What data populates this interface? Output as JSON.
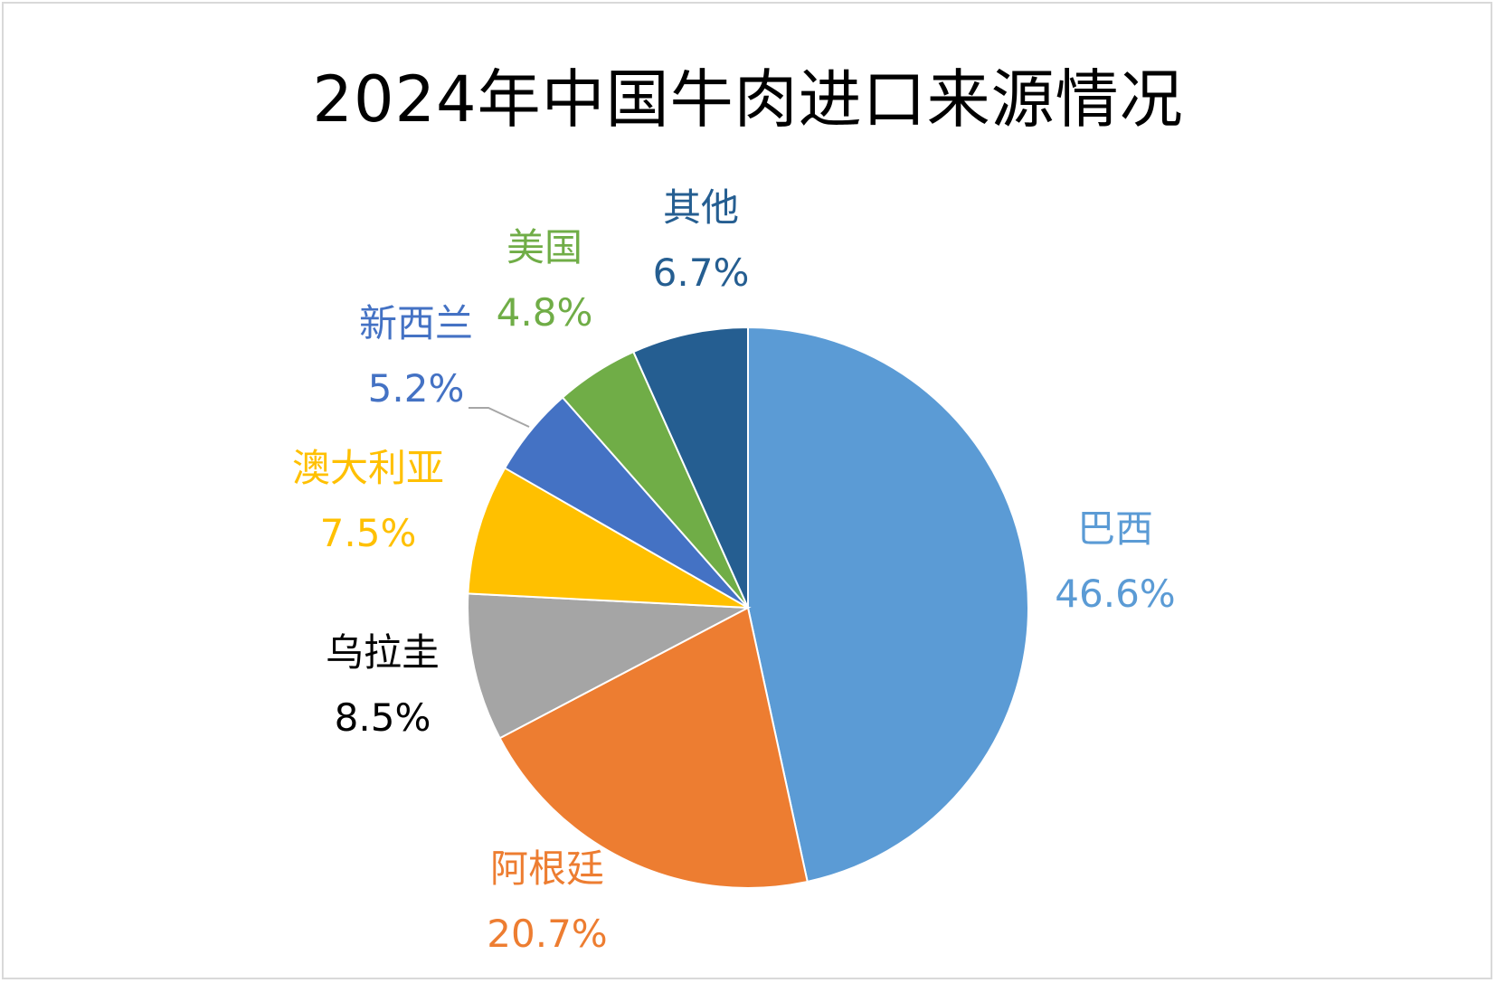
{
  "chart_data": {
    "type": "pie",
    "title": "2024年中国牛肉进口来源情况",
    "slices": [
      {
        "name": "巴西",
        "value": 46.6,
        "label": "46.6%",
        "color": "#5B9BD5"
      },
      {
        "name": "阿根廷",
        "value": 20.7,
        "label": "20.7%",
        "color": "#ED7D31"
      },
      {
        "name": "乌拉圭",
        "value": 8.5,
        "label": "8.5%",
        "color": "#A5A5A5"
      },
      {
        "name": "澳大利亚",
        "value": 7.5,
        "label": "7.5%",
        "color": "#FFC000"
      },
      {
        "name": "新西兰",
        "value": 5.2,
        "label": "5.2%",
        "color": "#4472C4"
      },
      {
        "name": "美国",
        "value": 4.8,
        "label": "4.8%",
        "color": "#70AD47"
      },
      {
        "name": "其他",
        "value": 6.7,
        "label": "6.7%",
        "color": "#255E91"
      }
    ],
    "label_colors": {
      "巴西": "#5B9BD5",
      "阿根廷": "#ED7D31",
      "乌拉圭": "#000000",
      "澳大利亚": "#FFC000",
      "新西兰": "#4472C4",
      "美国": "#70AD47",
      "其他": "#255E91"
    },
    "start_angle": "12 o'clock",
    "direction": "clockwise",
    "legend": "none"
  }
}
